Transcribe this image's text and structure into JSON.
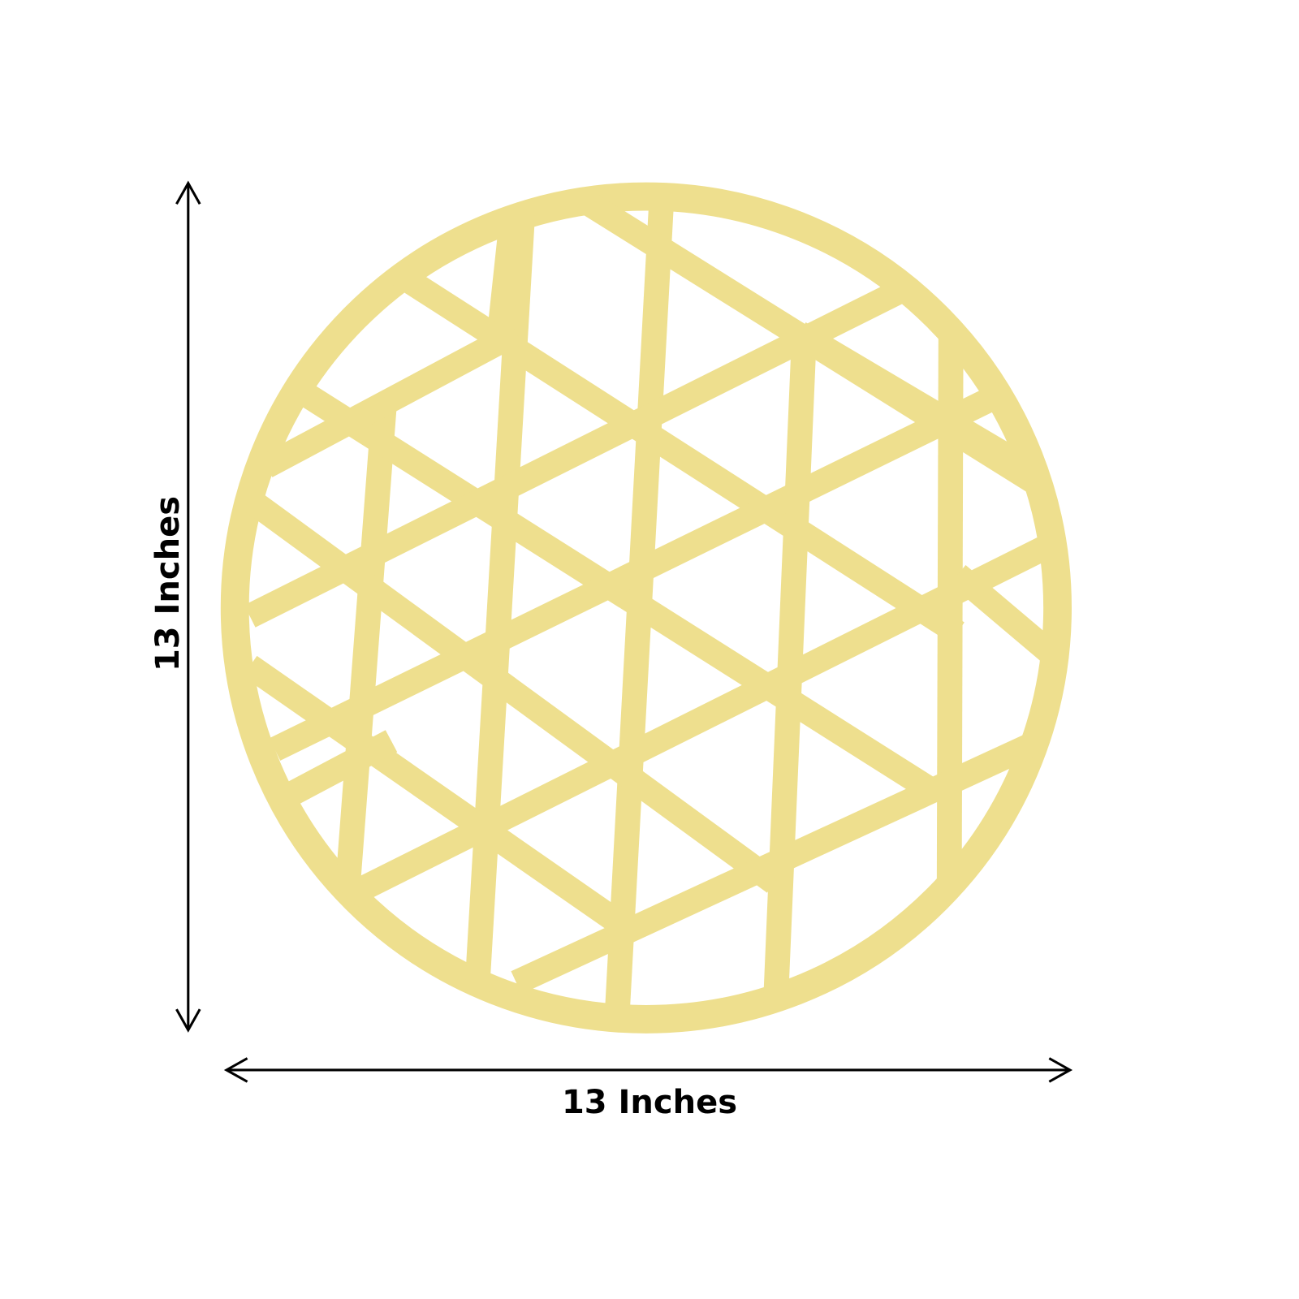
{
  "product": {
    "width_label": "13 Inches",
    "height_label": "13 Inches",
    "shape": "round geometric cut-out placemat",
    "color": "#EEDF8E"
  },
  "colors": {
    "gold": "#EEDF8E",
    "arrow": "#000000",
    "background": "#FFFFFF"
  }
}
